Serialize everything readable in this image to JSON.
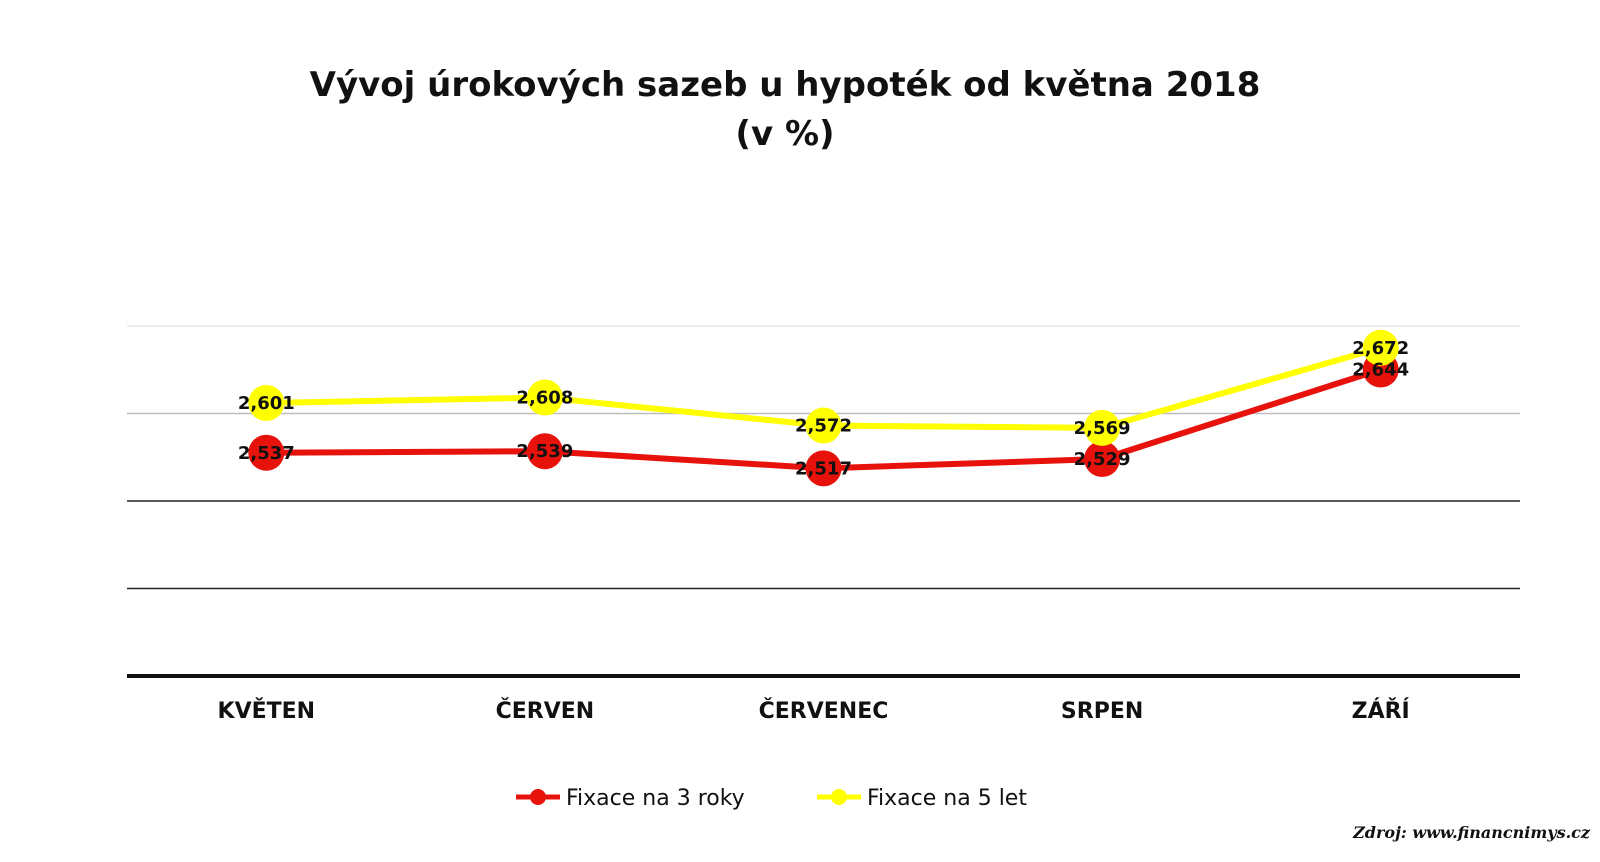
{
  "chart_data": {
    "type": "line",
    "title": "Vývoj úrokových sazeb u hypoték od května 2018",
    "subtitle": "(v %)",
    "categories": [
      "KVĚTEN",
      "ČERVEN",
      "ČERVENEC",
      "SRPEN",
      "ZÁŘÍ"
    ],
    "series": [
      {
        "name": "Fixace na 3 roky",
        "color": "#e8120c",
        "values": [
          2.537,
          2.539,
          2.517,
          2.529,
          2.644
        ],
        "labels": [
          "2,537",
          "2,539",
          "2,517",
          "2,529",
          "2,644"
        ]
      },
      {
        "name": "Fixace na 5 let",
        "color": "#ffff00",
        "values": [
          2.601,
          2.608,
          2.572,
          2.569,
          2.672
        ],
        "labels": [
          "2,601",
          "2,608",
          "2,572",
          "2,569",
          "2,672"
        ]
      }
    ],
    "ylim": [
      2.25,
      2.7
    ],
    "grid": true,
    "legend": "bottom",
    "source": "Zdroj: www.financnimys.cz"
  }
}
